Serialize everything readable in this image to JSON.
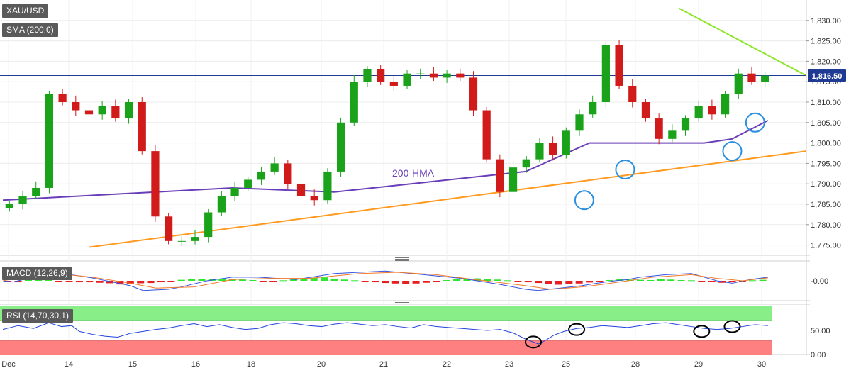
{
  "main_pane": {
    "symbol_label": "XAU/USD",
    "study_label": "SMA (200,0)",
    "hma_annotation": "200-HMA",
    "last_price_tag": "1,816.50"
  },
  "macd_pane": {
    "label": "MACD (12,26,9)"
  },
  "rsi_pane": {
    "label": "RSI (14,70,30,1)"
  },
  "colors": {
    "up_candle": "#1aa31a",
    "down_candle": "#d11a1a",
    "hma_line": "#6a3db8",
    "support_line": "#ff9a1f",
    "resistance_line": "#8ee62a",
    "price_line": "#1f3a93",
    "circle_marker": "#2b8fe0",
    "rsi_overbought_band": "#88ef88",
    "rsi_oversold_band": "#ff8080",
    "macd_line": "#3553e0",
    "signal_line": "#f07a2a"
  },
  "chart_data": [
    {
      "type": "candlestick",
      "title": "XAU/USD",
      "x_tick_labels": [
        "Dec",
        "14",
        "15",
        "16",
        "18",
        "20",
        "21",
        "22",
        "23",
        "25",
        "28",
        "29",
        "30"
      ],
      "y_tick_labels": [
        "1,830.00",
        "1,825.00",
        "1,820.00",
        "1,815.00",
        "1,810.00",
        "1,805.00",
        "1,800.00",
        "1,795.00",
        "1,790.00",
        "1,785.00",
        "1,780.00",
        "1,775.00"
      ],
      "ylim": [
        1772.5,
        1835
      ],
      "last_price": 1816.5,
      "candles_approx_close": [
        1785,
        1787,
        1789,
        1812,
        1810,
        1808,
        1807,
        1809,
        1806,
        1810,
        1798,
        1782,
        1776,
        1776,
        1777,
        1783,
        1787,
        1789,
        1791,
        1793,
        1795,
        1790,
        1787,
        1786,
        1793,
        1805,
        1815,
        1818,
        1815,
        1814,
        1817,
        1817,
        1816,
        1817,
        1816,
        1808,
        1796,
        1788,
        1794,
        1796,
        1800,
        1797,
        1803,
        1807,
        1810,
        1824,
        1814,
        1810,
        1806,
        1801,
        1803,
        1806,
        1809,
        1807,
        1812,
        1817,
        1815,
        1816.5
      ],
      "annotations": [
        {
          "text": "200-HMA",
          "series": "200-HMA"
        }
      ],
      "series": [
        {
          "name": "200-HMA",
          "kind": "line",
          "x": [
            0,
            6,
            9,
            13,
            16,
            20.5,
            23,
            25,
            27.5,
            28.6,
            30
          ],
          "values": [
            1786,
            1788,
            1789,
            1788,
            1790,
            1793,
            1800,
            1800,
            1800,
            1801,
            1805.5
          ]
        },
        {
          "name": "support",
          "kind": "trendline",
          "x": [
            3.4,
            31.5
          ],
          "values": [
            1774.5,
            1798
          ]
        },
        {
          "name": "resistance",
          "kind": "trendline",
          "x": [
            26.5,
            31.5
          ],
          "values": [
            1833,
            1816.5
          ]
        }
      ],
      "circled_lows": [
        {
          "x": 22.8,
          "y": 1786
        },
        {
          "x": 24.4,
          "y": 1793.5
        },
        {
          "x": 28.6,
          "y": 1798
        },
        {
          "x": 29.5,
          "y": 1805
        }
      ]
    },
    {
      "type": "line",
      "title": "MACD (12,26,9)",
      "y_tick_labels": [
        "-0.00"
      ],
      "ylim": [
        -7,
        7
      ],
      "series": [
        {
          "name": "macd",
          "kind": "line",
          "x": [
            0,
            0.4,
            0.8,
            1.3,
            2,
            3,
            3.5,
            5,
            5.5,
            6.5,
            7,
            8,
            9,
            10,
            11.5,
            13,
            15,
            16.5,
            17.5,
            18,
            19.5,
            20.5,
            21,
            22.7,
            23.3,
            24,
            24.5,
            25,
            26,
            27,
            27.5,
            28,
            28.6,
            29.3,
            30
          ],
          "values": [
            0,
            -0.5,
            0.5,
            4,
            3.5,
            2,
            1.2,
            -2,
            -4,
            -3.5,
            -2.5,
            0,
            1.5,
            1.5,
            0.5,
            3,
            4,
            2.5,
            1.5,
            1,
            -1.5,
            -3.5,
            -4,
            -2,
            -1,
            0,
            0.5,
            1.5,
            2.5,
            3,
            1.5,
            0,
            -1,
            0.5,
            1.5
          ]
        },
        {
          "name": "signal",
          "kind": "line",
          "x": [
            0,
            1,
            1.8,
            2.5,
            3.5,
            5,
            6,
            7.5,
            9,
            10.5,
            12,
            14,
            15.5,
            17,
            18.5,
            20.5,
            21.5,
            22.7,
            23.5,
            24.5,
            25.5,
            27,
            28,
            29,
            30
          ],
          "values": [
            0,
            2,
            3,
            2.5,
            1.5,
            -1,
            -3,
            -2.5,
            0.5,
            1,
            1,
            3,
            3.5,
            2.5,
            0.5,
            -2,
            -3.5,
            -2.5,
            -1.5,
            0,
            1.5,
            2.5,
            1,
            0,
            1.2
          ]
        },
        {
          "name": "histogram",
          "kind": "bar",
          "x": [
            0.2,
            0.6,
            1,
            1.4,
            1.8,
            2.2,
            2.6,
            3,
            3.4,
            3.8,
            4.2,
            4.6,
            5,
            5.4,
            5.8,
            6.2,
            6.6,
            7,
            7.4,
            7.8,
            8.2,
            8.6,
            9,
            9.4,
            9.8,
            10.2,
            10.6,
            11,
            11.4,
            11.8,
            12.2,
            12.6,
            13,
            13.4,
            13.8,
            14.2,
            14.6,
            15,
            15.4,
            15.8,
            16.2,
            16.6,
            17,
            17.4,
            17.8,
            18.2,
            18.6,
            19,
            19.4,
            19.8,
            20.2,
            20.6,
            21,
            21.4,
            21.8,
            22.2,
            22.6,
            23,
            23.4,
            23.8,
            24.2,
            24.6,
            25,
            25.4,
            25.8,
            26.2,
            26.6,
            27,
            27.4,
            27.8,
            28.2,
            28.6,
            29,
            29.4,
            29.8
          ],
          "values": [
            -0.5,
            -0.6,
            0.5,
            1.3,
            0.8,
            -0.3,
            -0.5,
            -0.6,
            -0.6,
            -0.8,
            -1,
            -1.5,
            -1.3,
            -1,
            -0.9,
            -0.6,
            -0.3,
            0.4,
            0.6,
            0.8,
            0.8,
            0.9,
            0.7,
            0.5,
            0.3,
            -0.2,
            -0.4,
            0.2,
            0.5,
            0.8,
            1.2,
            1.4,
            0.9,
            0.5,
            0.2,
            -0.3,
            -0.6,
            -0.9,
            -1.1,
            -1.3,
            -1.1,
            -0.8,
            -0.4,
            0.3,
            0.6,
            0.8,
            1,
            0.8,
            0.5,
            0.2,
            -0.3,
            -0.6,
            -0.9,
            -1.3,
            -1.6,
            -1.4,
            -1.1,
            -0.7,
            -0.3,
            0.3,
            0.6,
            0.5,
            0.4,
            0.3,
            0.6,
            0.5,
            0.3,
            0.2,
            -0.2,
            -0.5,
            -0.8,
            -0.6,
            -0.3,
            0.2,
            0.4
          ]
        }
      ]
    },
    {
      "type": "line",
      "title": "RSI (14,70,30,1)",
      "y_tick_labels": [
        "50.00",
        "0.00"
      ],
      "ylim": [
        0,
        100
      ],
      "levels": {
        "overbought": 70,
        "oversold": 30
      },
      "series": [
        {
          "name": "rsi",
          "kind": "line",
          "x": [
            0,
            0.6,
            1.2,
            1.8,
            2.3,
            2.7,
            3,
            3.5,
            4,
            4.5,
            5,
            5.5,
            6,
            6.5,
            7,
            7.5,
            8,
            8.5,
            9,
            9.5,
            10,
            10.5,
            11,
            11.5,
            12,
            12.5,
            13,
            13.5,
            14,
            14.5,
            15,
            15.5,
            16,
            16.5,
            17,
            17.5,
            18,
            18.5,
            19,
            19.5,
            20,
            20.5,
            21,
            21.3,
            21.6,
            22,
            22.5,
            23,
            23.5,
            24,
            24.5,
            25,
            25.5,
            26,
            26.5,
            27,
            27.5,
            28,
            28.5,
            29,
            29.5,
            30
          ],
          "values": [
            52,
            60,
            54,
            66,
            58,
            60,
            48,
            42,
            38,
            36,
            44,
            48,
            52,
            55,
            60,
            64,
            58,
            62,
            56,
            52,
            54,
            62,
            66,
            64,
            60,
            58,
            63,
            66,
            63,
            60,
            62,
            58,
            55,
            62,
            58,
            56,
            54,
            52,
            50,
            52,
            45,
            32,
            22,
            30,
            40,
            48,
            54,
            56,
            60,
            58,
            56,
            60,
            64,
            66,
            62,
            58,
            54,
            52,
            54,
            58,
            62,
            60
          ]
        }
      ],
      "circled_points": [
        {
          "x": 20.8,
          "y": 26
        },
        {
          "x": 22.5,
          "y": 52
        },
        {
          "x": 27.4,
          "y": 48
        },
        {
          "x": 28.6,
          "y": 58
        }
      ]
    }
  ]
}
